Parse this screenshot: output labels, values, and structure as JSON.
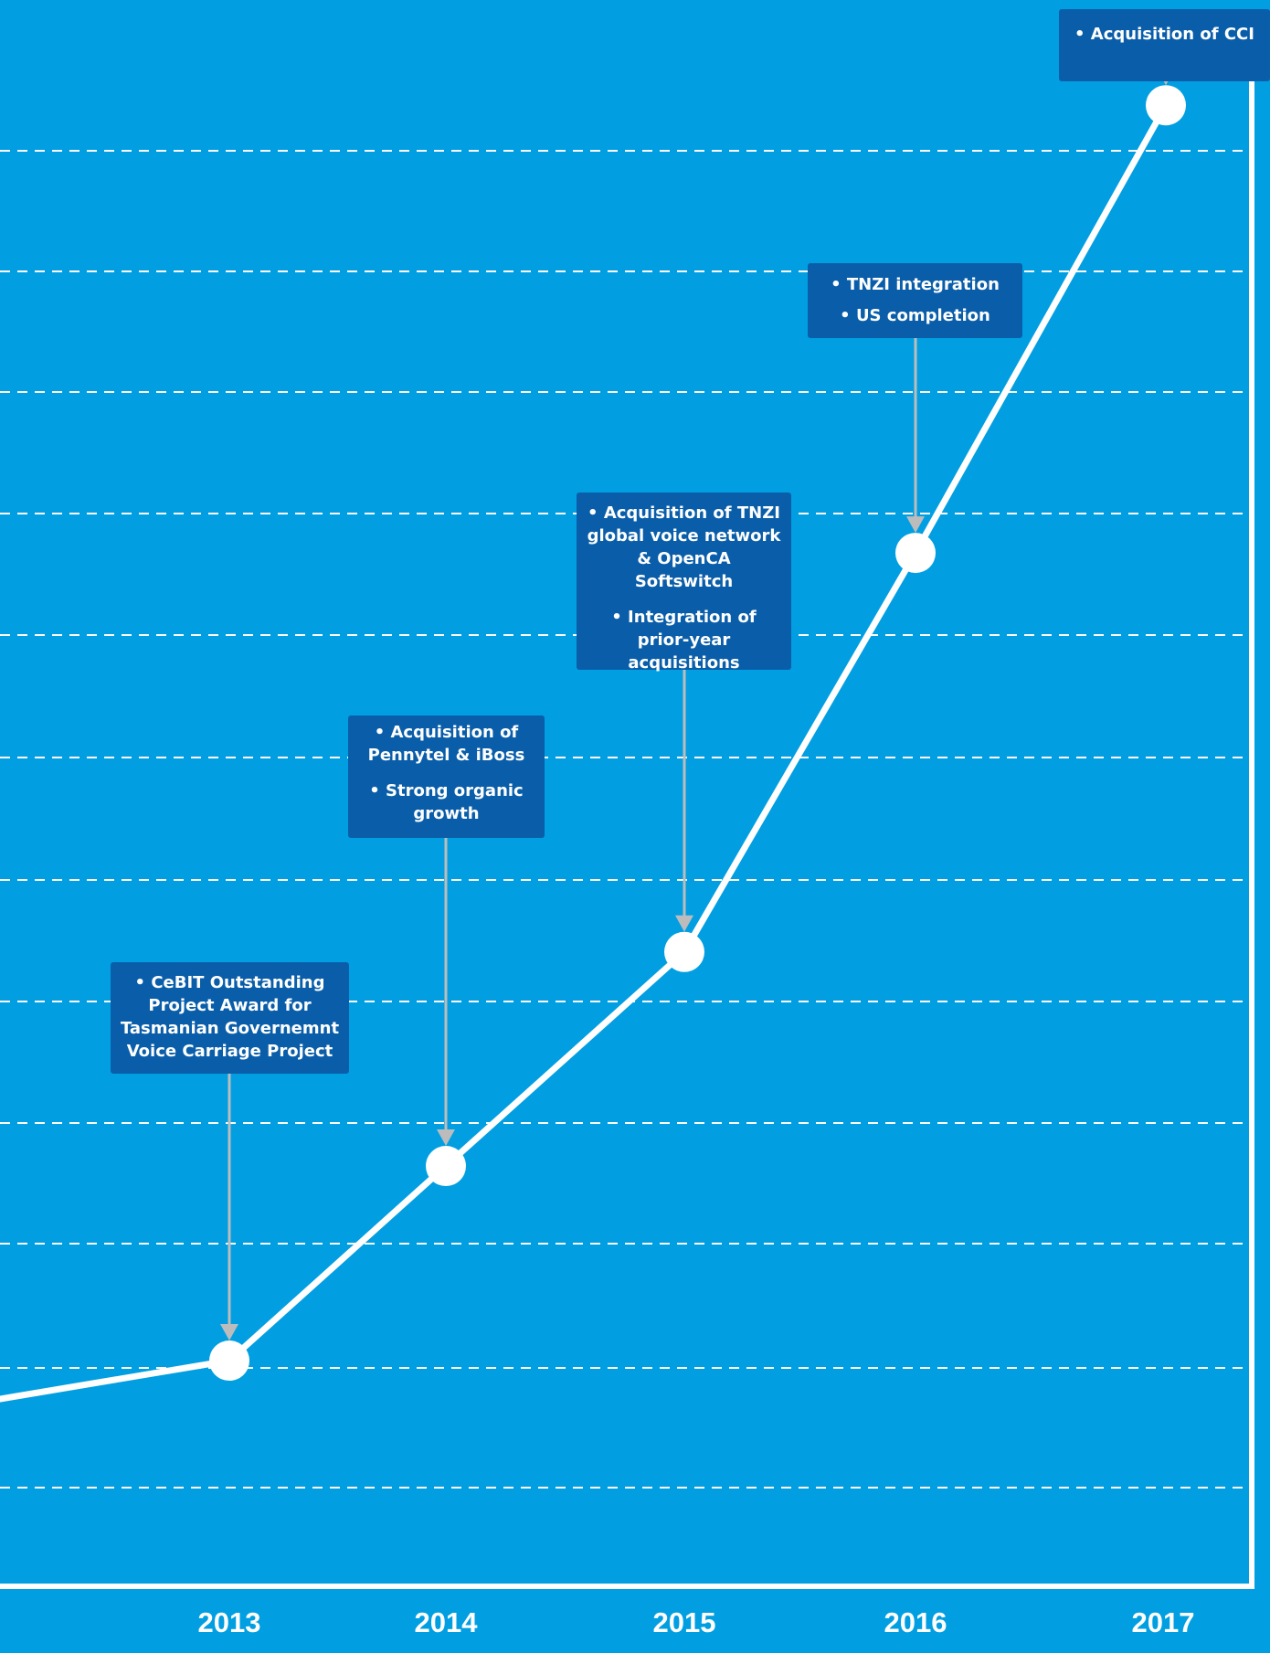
{
  "chart_data": {
    "type": "line",
    "x": [
      "2013",
      "2014",
      "2015",
      "2016",
      "2017"
    ],
    "series": [
      {
        "values": [
          2.3,
          4.3,
          6.5,
          10.6,
          15.2
        ]
      }
    ],
    "ylim": [
      0,
      16
    ],
    "grid": true,
    "annotations": [
      {
        "x": "2013",
        "lines": [
          "• CeBIT Outstanding Project Award for Tasmanian Governemnt Voice Carriage Project"
        ]
      },
      {
        "x": "2014",
        "lines": [
          "• Acquisition of Pennytel & iBoss",
          "• Strong organic growth"
        ]
      },
      {
        "x": "2015",
        "lines": [
          "• Acquisition of TNZI global voice network & OpenCA Softswitch",
          "• Integration of prior-year acquisitions"
        ]
      },
      {
        "x": "2016",
        "lines": [
          "• TNZI integration",
          "• US completion"
        ]
      },
      {
        "x": "2017",
        "lines": [
          "• Acquisition of CCI"
        ]
      }
    ]
  },
  "colors": {
    "background": "#019fe2",
    "callout": "#0a5ea9",
    "line": "#ffffff",
    "arrow": "#bcbcbc",
    "grid": "#ffffff"
  }
}
